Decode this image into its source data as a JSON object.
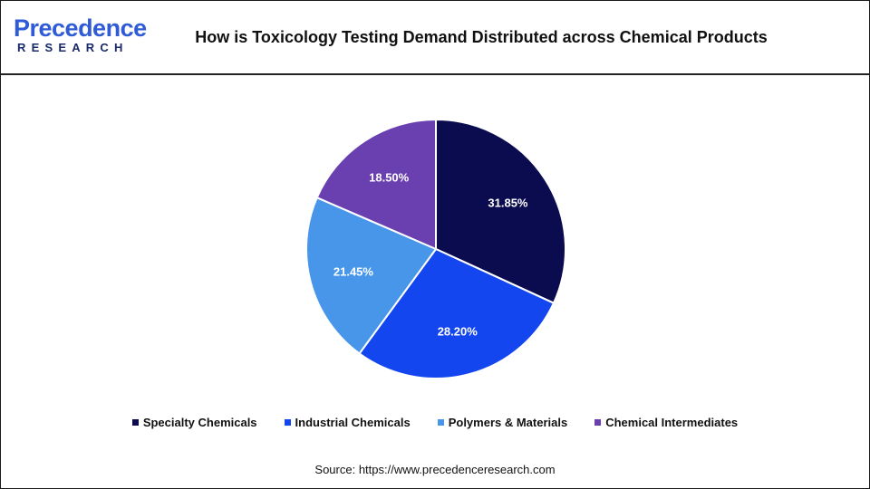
{
  "header": {
    "logo_word": "Precedence",
    "logo_sub": "RESEARCH",
    "title": "How is Toxicology Testing Demand Distributed across Chemical Products"
  },
  "chart_data": {
    "type": "pie",
    "title": "How is Toxicology Testing Demand Distributed across Chemical Products",
    "categories": [
      "Specialty Chemicals",
      "Industrial Chemicals",
      "Polymers & Materials",
      "Chemical Intermediates"
    ],
    "values": [
      31.85,
      28.2,
      21.45,
      18.5
    ],
    "labels": [
      "31.85%",
      "28.20%",
      "21.45%",
      "18.50%"
    ],
    "colors": [
      "#0b0b4f",
      "#1446f0",
      "#4796ea",
      "#6a40b0"
    ],
    "legend_position": "bottom"
  },
  "legend": {
    "items": [
      {
        "label": "Specialty Chemicals",
        "color": "#0b0b4f"
      },
      {
        "label": "Industrial Chemicals",
        "color": "#1446f0"
      },
      {
        "label": "Polymers & Materials",
        "color": "#4796ea"
      },
      {
        "label": "Chemical Intermediates",
        "color": "#6a40b0"
      }
    ]
  },
  "footer": {
    "source": "Source: https://www.precedenceresearch.com"
  }
}
